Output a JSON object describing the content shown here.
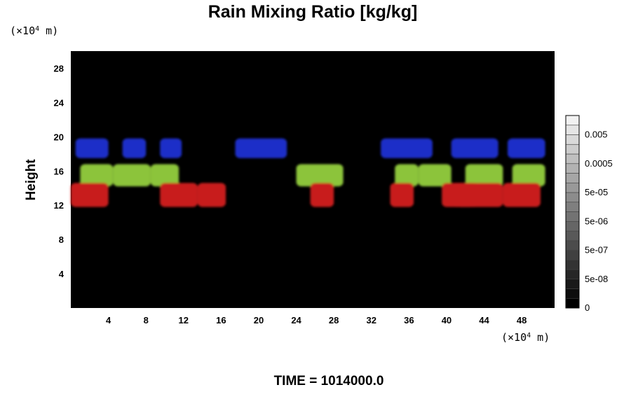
{
  "chart_data": {
    "type": "heatmap",
    "title": "Rain Mixing Ratio [kg/kg]",
    "ylabel": "Height",
    "x_unit": {
      "prefix": "(×10",
      "exp": "4",
      "suffix": " m)"
    },
    "y_unit": {
      "prefix": "(×10",
      "exp": "4",
      "suffix": " m)"
    },
    "xlim": [
      0,
      51.5
    ],
    "ylim": [
      0,
      30
    ],
    "x_ticks": [
      4,
      8,
      12,
      16,
      20,
      24,
      28,
      32,
      36,
      40,
      44,
      48
    ],
    "y_ticks": [
      4,
      8,
      12,
      16,
      20,
      24,
      28
    ],
    "background_color": "#000000",
    "colorbar": {
      "levels": 20,
      "labels": [
        "0",
        "5e-08",
        "5e-07",
        "5e-06",
        "5e-05",
        "0.0005",
        "0.005"
      ],
      "min_color": "#000000",
      "max_color": "#f2f2f2"
    },
    "bands": [
      {
        "name": "blue",
        "color": "#1f2fc8",
        "y_range": [
          17.5,
          19.8
        ],
        "segments": [
          [
            0.5,
            4.0
          ],
          [
            5.5,
            8.0
          ],
          [
            9.5,
            11.8
          ],
          [
            17.5,
            23.0
          ],
          [
            33.0,
            38.5
          ],
          [
            40.5,
            45.5
          ],
          [
            46.5,
            50.5
          ]
        ]
      },
      {
        "name": "green",
        "color": "#8cc43a",
        "y_range": [
          14.2,
          16.8
        ],
        "segments": [
          [
            1.0,
            4.5
          ],
          [
            4.5,
            8.5
          ],
          [
            8.5,
            11.5
          ],
          [
            24.0,
            29.0
          ],
          [
            34.5,
            37.0
          ],
          [
            37.0,
            40.5
          ],
          [
            42.0,
            46.0
          ],
          [
            47.0,
            50.5
          ]
        ]
      },
      {
        "name": "red",
        "color": "#c81e1e",
        "y_range": [
          11.8,
          14.6
        ],
        "segments": [
          [
            0.0,
            4.0
          ],
          [
            9.5,
            13.5
          ],
          [
            13.5,
            16.5
          ],
          [
            25.5,
            28.0
          ],
          [
            34.0,
            36.5
          ],
          [
            39.5,
            43.0
          ],
          [
            41.0,
            46.0
          ],
          [
            46.0,
            50.0
          ],
          [
            40.5,
            43.5
          ]
        ]
      }
    ]
  },
  "time_label": "TIME = 1014000.0"
}
